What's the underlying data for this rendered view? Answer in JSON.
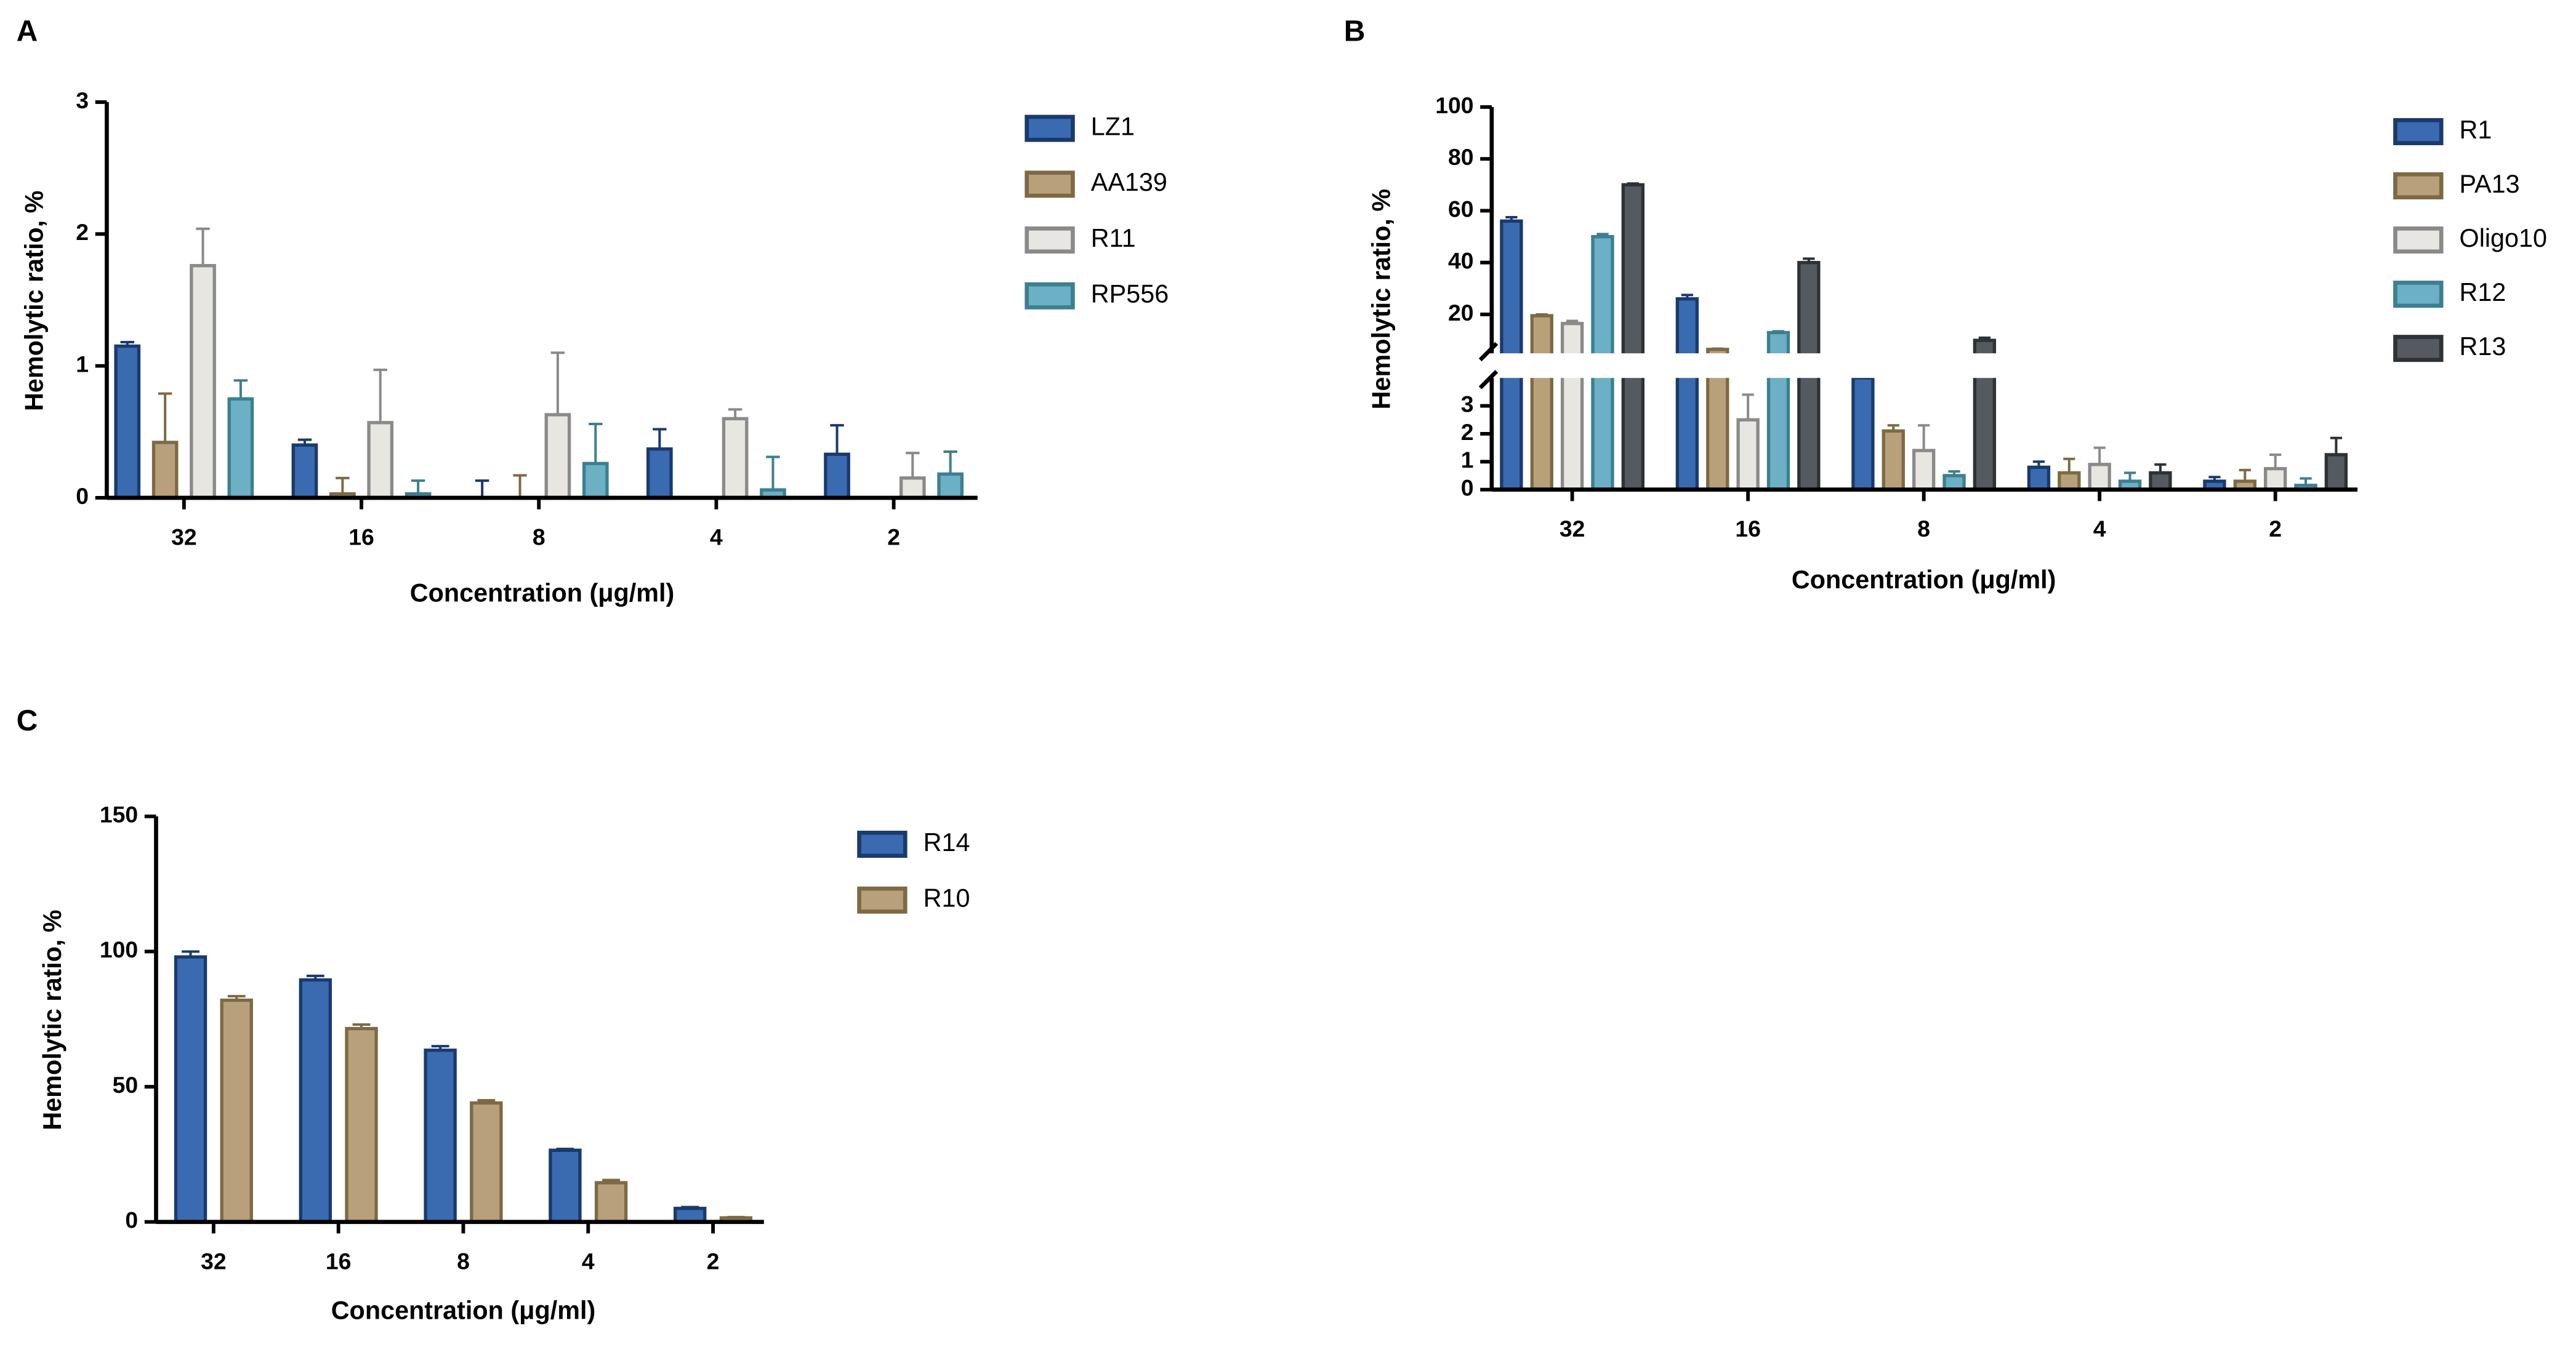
{
  "chart_data": [
    {
      "type": "bar",
      "panel": "A",
      "y_label": "Hemolytic ratio, %",
      "x_label": "Concentration (μg/ml)",
      "categories": [
        "32",
        "16",
        "8",
        "4",
        "2"
      ],
      "ylim": [
        0,
        3
      ],
      "yticks": [
        0,
        1,
        2,
        3
      ],
      "series": [
        {
          "name": "LZ1",
          "color": "#3a6bb0",
          "edge": "#1a3a6e",
          "values": [
            1.15,
            0.4,
            0,
            0.37,
            0.33
          ],
          "errors": [
            0.03,
            0.04,
            0.13,
            0.15,
            0.22
          ]
        },
        {
          "name": "AA139",
          "color": "#b8a07a",
          "edge": "#7d6a45",
          "values": [
            0.42,
            0.03,
            0,
            0,
            0
          ],
          "errors": [
            0.37,
            0.12,
            0.17,
            0,
            0
          ]
        },
        {
          "name": "R11",
          "color": "#e8e6e0",
          "edge": "#8a8a8a",
          "values": [
            1.76,
            0.57,
            0.63,
            0.6,
            0.15
          ],
          "errors": [
            0.28,
            0.4,
            0.47,
            0.07,
            0.19
          ]
        },
        {
          "name": "RP556",
          "color": "#6bb0c4",
          "edge": "#3d7f90",
          "values": [
            0.75,
            0.03,
            0.26,
            0.06,
            0.18
          ],
          "errors": [
            0.14,
            0.1,
            0.3,
            0.25,
            0.17
          ]
        }
      ]
    },
    {
      "type": "bar",
      "panel": "B",
      "y_label": "Hemolytic ratio, %",
      "x_label": "Concentration (μg/ml)",
      "categories": [
        "32",
        "16",
        "8",
        "4",
        "2"
      ],
      "ylim": [
        0,
        100
      ],
      "ylim_segments": [
        [
          0,
          4
        ],
        [
          5,
          100
        ]
      ],
      "yticks": [
        0,
        1,
        2,
        3,
        20,
        40,
        60,
        80,
        100
      ],
      "series": [
        {
          "name": "R1",
          "color": "#3a6bb0",
          "edge": "#1a3a6e",
          "values": [
            56,
            26,
            4.5,
            0.8,
            0.3
          ],
          "errors": [
            1.5,
            1.5,
            0,
            0.2,
            0.15
          ]
        },
        {
          "name": "PA13",
          "color": "#b8a07a",
          "edge": "#7d6a45",
          "values": [
            19.5,
            6.5,
            2.1,
            0.6,
            0.3
          ],
          "errors": [
            0.5,
            0.3,
            0.2,
            0.5,
            0.4
          ]
        },
        {
          "name": "Oligo10",
          "color": "#e8e6e0",
          "edge": "#8a8a8a",
          "values": [
            16.5,
            2.5,
            1.4,
            0.9,
            0.75
          ],
          "errors": [
            1,
            0.9,
            0.9,
            0.6,
            0.5
          ]
        },
        {
          "name": "R12",
          "color": "#6bb0c4",
          "edge": "#3d7f90",
          "values": [
            50,
            13,
            0.5,
            0.3,
            0.15
          ],
          "errors": [
            1,
            0.5,
            0.15,
            0.3,
            0.25
          ]
        },
        {
          "name": "R13",
          "color": "#555a60",
          "edge": "#2e3136",
          "values": [
            70,
            40,
            10,
            0.6,
            1.25
          ],
          "errors": [
            0.5,
            1.5,
            1,
            0.3,
            0.6
          ]
        }
      ]
    },
    {
      "type": "bar",
      "panel": "C",
      "y_label": "Hemolytic ratio, %",
      "x_label": "Concentration (μg/ml)",
      "categories": [
        "32",
        "16",
        "8",
        "4",
        "2"
      ],
      "ylim": [
        0,
        150
      ],
      "yticks": [
        0,
        50,
        100,
        150
      ],
      "series": [
        {
          "name": "R14",
          "color": "#3a6bb0",
          "edge": "#1a3a6e",
          "values": [
            98,
            89.5,
            63.5,
            26.5,
            5
          ],
          "errors": [
            2,
            1.5,
            1.5,
            0.5,
            0.5
          ]
        },
        {
          "name": "R10",
          "color": "#b8a07a",
          "edge": "#7d6a45",
          "values": [
            82,
            71.5,
            44,
            14.5,
            1.5
          ],
          "errors": [
            1.5,
            1.5,
            1,
            1,
            0.3
          ]
        }
      ]
    }
  ]
}
